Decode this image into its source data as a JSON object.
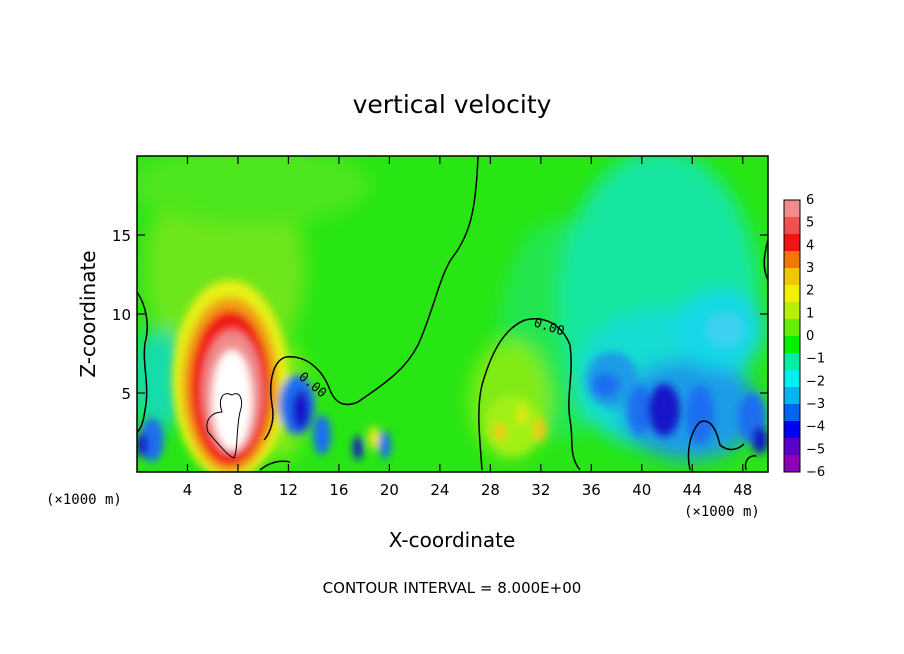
{
  "chart_data": {
    "type": "heatmap",
    "title": "vertical velocity",
    "xlabel": "X-coordinate",
    "ylabel": "Z-coordinate",
    "x_unit": "(×1000 m)",
    "z_unit": "(×1000 m)",
    "xlim": [
      0,
      50
    ],
    "ylim": [
      0,
      20
    ],
    "x_ticks": [
      4,
      8,
      12,
      16,
      20,
      24,
      28,
      32,
      36,
      40,
      44,
      48
    ],
    "y_ticks": [
      5,
      10,
      15
    ],
    "colorbar": {
      "levels": [
        6,
        5,
        4,
        3,
        2,
        1,
        0,
        -1,
        -2,
        -3,
        -4,
        -5,
        -6
      ],
      "colors": [
        "#f08c8c",
        "#f05050",
        "#f01414",
        "#f07800",
        "#f0c800",
        "#f0f000",
        "#b4f000",
        "#64f000",
        "#00f000",
        "#00f0a0",
        "#00f0f0",
        "#00b4f0",
        "#0064f0",
        "#0000f0",
        "#5a00c8",
        "#8c00b4"
      ]
    },
    "contour_labels": [
      "0.00",
      "0.00"
    ],
    "contour_interval_text": "CONTOUR INTERVAL = 8.000E+00",
    "features": [
      {
        "kind": "updraft",
        "x": 7,
        "z": 4.5,
        "peak": 8
      },
      {
        "kind": "updraft",
        "x": 30,
        "z": 2,
        "peak": 2.5
      },
      {
        "kind": "downdraft",
        "x": 13,
        "z": 3.5,
        "peak": -4
      },
      {
        "kind": "downdraft",
        "x": 19,
        "z": 1.5,
        "peak": -4.5
      },
      {
        "kind": "downdraft",
        "x": 36.5,
        "z": 4.5,
        "peak": -3.5
      },
      {
        "kind": "downdraft",
        "x": 38.5,
        "z": 3,
        "peak": -4
      },
      {
        "kind": "downdraft",
        "x": 42,
        "z": 3.5,
        "peak": -5
      },
      {
        "kind": "downdraft",
        "x": 45,
        "z": 3.5,
        "peak": -3.5
      },
      {
        "kind": "downdraft",
        "x": 48,
        "z": 3.5,
        "peak": -4
      },
      {
        "kind": "downdraft",
        "x": 40,
        "z": 7,
        "peak": -2.5
      },
      {
        "kind": "downdraft",
        "x": 0.5,
        "z": 1.5,
        "peak": -4
      }
    ]
  }
}
